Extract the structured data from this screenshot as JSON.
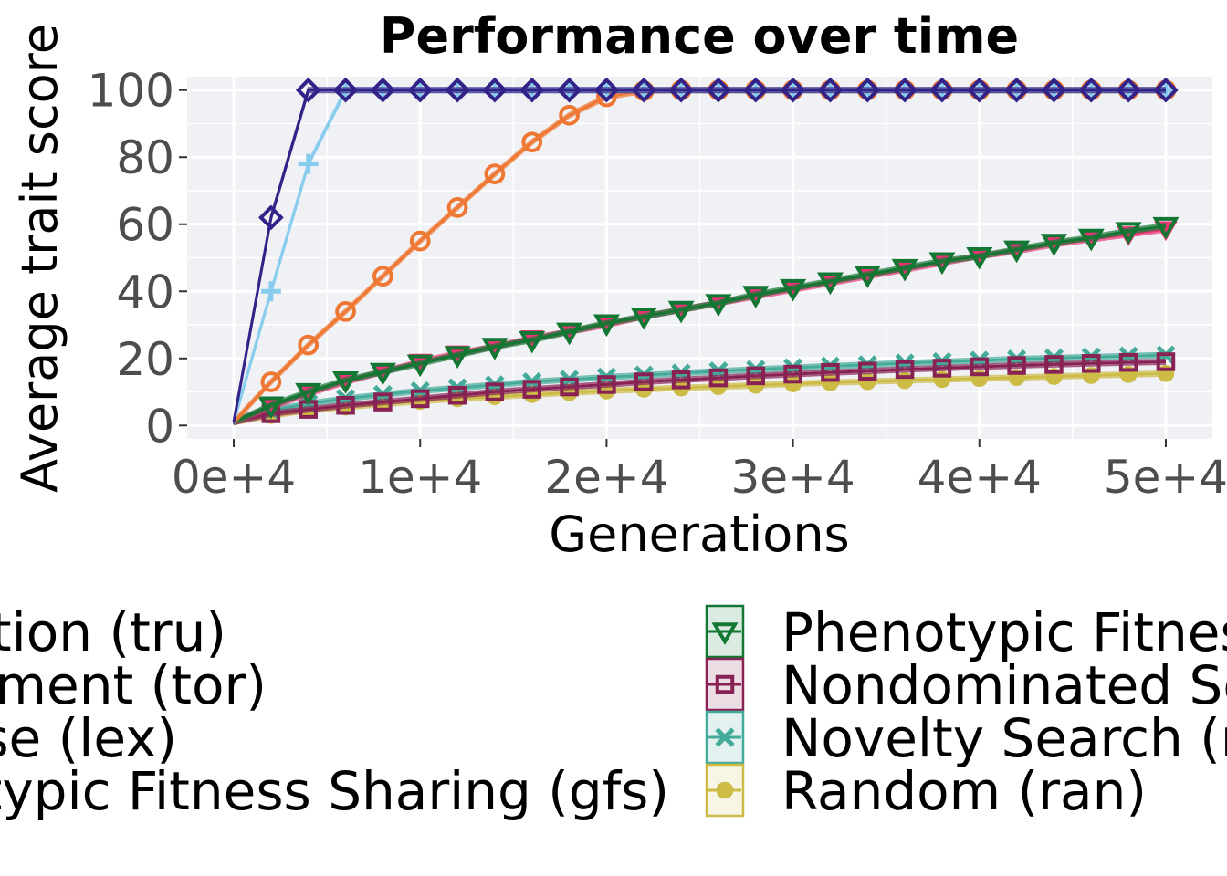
{
  "chart_data": {
    "type": "line",
    "title": "Performance over time",
    "xlabel": "Generations",
    "ylabel": "Average trait score",
    "xlim": [
      -2500,
      52500
    ],
    "ylim": [
      -4,
      104
    ],
    "x_ticks": [
      {
        "value": 0,
        "label": "0e+4"
      },
      {
        "value": 10000,
        "label": "1e+4"
      },
      {
        "value": 20000,
        "label": "2e+4"
      },
      {
        "value": 30000,
        "label": "3e+4"
      },
      {
        "value": 40000,
        "label": "4e+4"
      },
      {
        "value": 50000,
        "label": "5e+4"
      }
    ],
    "y_ticks": [
      {
        "value": 0,
        "label": "0"
      },
      {
        "value": 20,
        "label": "20"
      },
      {
        "value": 40,
        "label": "40"
      },
      {
        "value": 60,
        "label": "60"
      },
      {
        "value": 80,
        "label": "80"
      },
      {
        "value": 100,
        "label": "100"
      }
    ],
    "grid": true,
    "legend_position": "bottom",
    "x": [
      0,
      2000,
      4000,
      6000,
      8000,
      10000,
      12000,
      14000,
      16000,
      18000,
      20000,
      22000,
      24000,
      26000,
      28000,
      30000,
      32000,
      34000,
      36000,
      38000,
      40000,
      42000,
      44000,
      46000,
      48000,
      50000
    ],
    "series": [
      {
        "name": "Truncation (tru)",
        "color": "#332288",
        "marker": "diamond",
        "values": [
          1,
          62,
          100,
          100,
          100,
          100,
          100,
          100,
          100,
          100,
          100,
          100,
          100,
          100,
          100,
          100,
          100,
          100,
          100,
          100,
          100,
          100,
          100,
          100,
          100,
          100
        ]
      },
      {
        "name": "Tournament (tor)",
        "color": "#88CCEE",
        "marker": "plus",
        "values": [
          1,
          40,
          78,
          100,
          100,
          100,
          100,
          100,
          100,
          100,
          100,
          100,
          100,
          100,
          100,
          100,
          100,
          100,
          100,
          100,
          100,
          100,
          100,
          100,
          100,
          100
        ]
      },
      {
        "name": "Lexicase (lex)",
        "color": "#EE7733",
        "marker": "circle-open",
        "values": [
          1,
          13,
          24,
          34,
          44.5,
          55,
          65,
          75,
          84.5,
          92.5,
          98,
          99.8,
          100,
          100,
          100,
          100,
          100,
          100,
          100,
          100,
          100,
          100,
          100,
          100,
          100,
          100
        ]
      },
      {
        "name": "Genotypic Fitness Sharing (gfs)",
        "color": "#EE3377",
        "marker": "triangle-down",
        "values": [
          1,
          5.5,
          9.5,
          13,
          16,
          19,
          21.5,
          23.5,
          26,
          28,
          30,
          32.5,
          34.5,
          36.5,
          38.5,
          40.5,
          42.5,
          44.5,
          46.5,
          48.5,
          50.5,
          52,
          54,
          55.5,
          57,
          58.5
        ]
      },
      {
        "name": "Phenotypic Fitness Sharing (pfs)",
        "color": "#117733",
        "marker": "triangle-down-open",
        "values": [
          1,
          6,
          10,
          13.5,
          16,
          18.5,
          21,
          23.5,
          25.5,
          28,
          30.5,
          32.5,
          34.5,
          36.5,
          39,
          41,
          43,
          45,
          47,
          49,
          50.5,
          52.5,
          54.5,
          56,
          58,
          59.5
        ]
      },
      {
        "name": "Nondominated Sorting (nds)",
        "color": "#882255",
        "marker": "square-open",
        "values": [
          1,
          3.5,
          4.8,
          6,
          7,
          8,
          9,
          10,
          10.8,
          11.5,
          12.2,
          13,
          13.6,
          14.2,
          14.8,
          15.3,
          15.8,
          16.2,
          16.7,
          17.1,
          17.5,
          17.9,
          18.2,
          18.5,
          18.8,
          19
        ]
      },
      {
        "name": "Novelty Search (nov)",
        "color": "#44AA99",
        "marker": "cross",
        "values": [
          1,
          4.5,
          6.5,
          8,
          9.2,
          10.3,
          11.2,
          12.1,
          13,
          13.7,
          14.4,
          15,
          15.6,
          16.2,
          16.7,
          17.2,
          17.7,
          18.1,
          18.6,
          19,
          19.4,
          19.8,
          20.1,
          20.4,
          20.7,
          21
        ]
      },
      {
        "name": "Random (ran)",
        "color": "#CCBB44",
        "marker": "circle",
        "values": [
          1,
          3,
          4.5,
          5.5,
          6.4,
          7.2,
          8,
          8.6,
          9.2,
          9.8,
          10.3,
          10.8,
          11.2,
          11.6,
          12,
          12.4,
          12.8,
          13.1,
          13.4,
          13.7,
          14,
          14.3,
          14.6,
          14.9,
          15.2,
          15.5
        ]
      }
    ]
  }
}
